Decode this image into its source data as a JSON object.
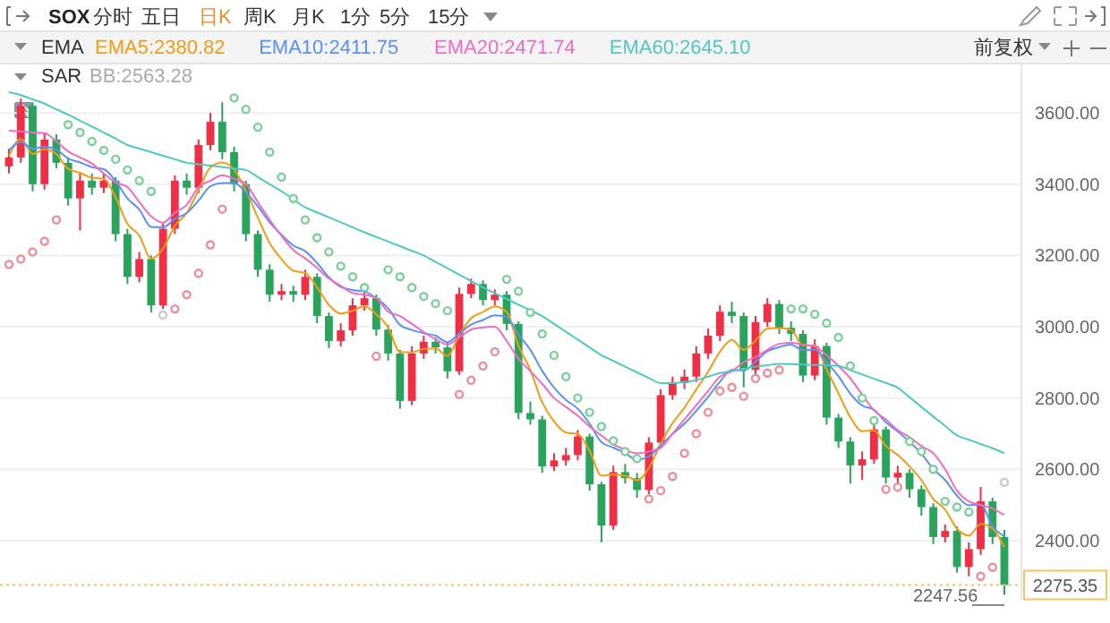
{
  "chart_data": {
    "type": "candlestick",
    "categories": [
      null,
      null,
      null,
      null,
      null,
      null,
      null,
      null,
      null,
      null,
      null,
      null,
      null,
      null,
      null,
      null,
      null,
      null,
      null,
      null,
      null,
      null,
      null,
      null,
      null,
      null,
      null,
      null,
      null,
      null,
      null,
      null,
      null,
      null,
      null,
      null,
      null,
      null,
      null,
      null,
      null,
      null,
      null,
      null,
      null,
      null,
      null,
      null,
      null,
      null,
      null,
      null,
      null,
      null,
      null,
      null,
      null,
      null,
      null,
      null,
      null,
      null,
      null,
      null,
      null,
      null,
      null,
      null,
      null,
      null,
      null,
      null,
      null,
      null,
      null,
      null,
      null,
      null,
      null,
      null,
      null,
      null,
      null,
      null,
      null
    ],
    "ohlc": [
      [
        3450,
        3500,
        3430,
        3475
      ],
      [
        3475,
        3640,
        3460,
        3620
      ],
      [
        3620,
        3630,
        3380,
        3400
      ],
      [
        3400,
        3545,
        3385,
        3525
      ],
      [
        3525,
        3540,
        3445,
        3460
      ],
      [
        3460,
        3475,
        3340,
        3360
      ],
      [
        3360,
        3430,
        3270,
        3410
      ],
      [
        3410,
        3430,
        3370,
        3390
      ],
      [
        3390,
        3430,
        3375,
        3410
      ],
      [
        3410,
        3420,
        3240,
        3260
      ],
      [
        3260,
        3275,
        3120,
        3140
      ],
      [
        3140,
        3210,
        3125,
        3190
      ],
      [
        3190,
        3200,
        3040,
        3060
      ],
      [
        3060,
        3290,
        3050,
        3275
      ],
      [
        3275,
        3425,
        3260,
        3410
      ],
      [
        3410,
        3430,
        3370,
        3390
      ],
      [
        3390,
        3525,
        3375,
        3510
      ],
      [
        3510,
        3600,
        3495,
        3575
      ],
      [
        3575,
        3630,
        3470,
        3490
      ],
      [
        3490,
        3505,
        3380,
        3400
      ],
      [
        3400,
        3410,
        3240,
        3260
      ],
      [
        3260,
        3270,
        3140,
        3160
      ],
      [
        3160,
        3175,
        3070,
        3090
      ],
      [
        3090,
        3120,
        3075,
        3100
      ],
      [
        3100,
        3115,
        3070,
        3090
      ],
      [
        3090,
        3160,
        3075,
        3140
      ],
      [
        3140,
        3150,
        3010,
        3030
      ],
      [
        3030,
        3040,
        2940,
        2960
      ],
      [
        2960,
        3010,
        2945,
        2990
      ],
      [
        2990,
        3080,
        2975,
        3060
      ],
      [
        3060,
        3100,
        3045,
        3080
      ],
      [
        3080,
        3090,
        2975,
        2992
      ],
      [
        2992,
        3005,
        2905,
        2925
      ],
      [
        2925,
        2935,
        2770,
        2792
      ],
      [
        2792,
        2945,
        2780,
        2925
      ],
      [
        2925,
        2975,
        2910,
        2958
      ],
      [
        2958,
        2970,
        2925,
        2942
      ],
      [
        2942,
        2955,
        2855,
        2875
      ],
      [
        2875,
        3110,
        2865,
        3092
      ],
      [
        3092,
        3135,
        3080,
        3120
      ],
      [
        3120,
        3130,
        3060,
        3075
      ],
      [
        3075,
        3105,
        3060,
        3090
      ],
      [
        3090,
        3100,
        2990,
        3008
      ],
      [
        3008,
        3015,
        2740,
        2758
      ],
      [
        2758,
        2790,
        2725,
        2740
      ],
      [
        2740,
        2750,
        2590,
        2608
      ],
      [
        2608,
        2645,
        2595,
        2625
      ],
      [
        2625,
        2660,
        2610,
        2640
      ],
      [
        2640,
        2710,
        2625,
        2692
      ],
      [
        2692,
        2700,
        2540,
        2558
      ],
      [
        2558,
        2565,
        2395,
        2442
      ],
      [
        2442,
        2610,
        2430,
        2592
      ],
      [
        2592,
        2615,
        2560,
        2575
      ],
      [
        2575,
        2590,
        2520,
        2542
      ],
      [
        2542,
        2690,
        2530,
        2675
      ],
      [
        2675,
        2825,
        2660,
        2808
      ],
      [
        2808,
        2860,
        2795,
        2842
      ],
      [
        2842,
        2880,
        2825,
        2860
      ],
      [
        2860,
        2945,
        2845,
        2925
      ],
      [
        2925,
        2995,
        2910,
        2975
      ],
      [
        2975,
        3060,
        2960,
        3042
      ],
      [
        3042,
        3070,
        3010,
        3030
      ],
      [
        3030,
        3040,
        2830,
        2879
      ],
      [
        2879,
        3030,
        2865,
        3013
      ],
      [
        3013,
        3080,
        3000,
        3064
      ],
      [
        3064,
        3075,
        2980,
        2997
      ],
      [
        2997,
        3015,
        2960,
        2980
      ],
      [
        2980,
        2990,
        2845,
        2863
      ],
      [
        2863,
        2965,
        2850,
        2946
      ],
      [
        2946,
        2955,
        2725,
        2745
      ],
      [
        2745,
        2755,
        2660,
        2678
      ],
      [
        2678,
        2690,
        2560,
        2611
      ],
      [
        2611,
        2650,
        2570,
        2628
      ],
      [
        2628,
        2730,
        2615,
        2712
      ],
      [
        2712,
        2720,
        2560,
        2577
      ],
      [
        2577,
        2610,
        2560,
        2590
      ],
      [
        2590,
        2600,
        2520,
        2544
      ],
      [
        2544,
        2555,
        2470,
        2494
      ],
      [
        2494,
        2505,
        2390,
        2410
      ],
      [
        2410,
        2445,
        2395,
        2427
      ],
      [
        2427,
        2440,
        2310,
        2326
      ],
      [
        2326,
        2395,
        2300,
        2376
      ],
      [
        2376,
        2550,
        2360,
        2510
      ],
      [
        2510,
        2520,
        2390,
        2410
      ],
      [
        2410,
        2430,
        2247.56,
        2275.35
      ]
    ],
    "series": [
      {
        "name": "EMA5:2380.82",
        "type": "line",
        "color": "#f39c12",
        "values": [
          3480,
          3527,
          3485,
          3498,
          3485,
          3443,
          3432,
          3418,
          3415,
          3363,
          3289,
          3256,
          3191,
          3219,
          3283,
          3319,
          3383,
          3447,
          3461,
          3441,
          3381,
          3307,
          3235,
          3190,
          3157,
          3151,
          3111,
          3061,
          3037,
          3045,
          3057,
          3035,
          2998,
          2929,
          2928,
          2938,
          2939,
          2918,
          2976,
          3024,
          3041,
          3057,
          3041,
          2947,
          2878,
          2788,
          2734,
          2703,
          2699,
          2652,
          2582,
          2585,
          2582,
          2569,
          2604,
          2672,
          2729,
          2773,
          2824,
          2874,
          2930,
          2963,
          2935,
          2961,
          2995,
          2996,
          2991,
          2948,
          2947,
          2880,
          2813,
          2746,
          2707,
          2709,
          2665,
          2640,
          2608,
          2570,
          2517,
          2487,
          2433,
          2414,
          2446,
          2434,
          2380.82
        ]
      },
      {
        "name": "EMA10:2411.75",
        "type": "line",
        "color": "#5b8ff9",
        "values": [
          3495,
          3518,
          3500,
          3505,
          3497,
          3472,
          3461,
          3448,
          3442,
          3409,
          3360,
          3329,
          3280,
          3279,
          3303,
          3319,
          3354,
          3394,
          3403,
          3403,
          3377,
          3338,
          3293,
          3258,
          3228,
          3212,
          3179,
          3139,
          3112,
          3103,
          3099,
          3080,
          3052,
          3005,
          2991,
          2982,
          2975,
          2957,
          2981,
          3006,
          3019,
          3032,
          3027,
          2978,
          2935,
          2876,
          2829,
          2795,
          2770,
          2728,
          2676,
          2661,
          2645,
          2627,
          2636,
          2667,
          2699,
          2728,
          2764,
          2803,
          2846,
          2879,
          2877,
          2902,
          2931,
          2943,
          2950,
          2934,
          2936,
          2901,
          2861,
          2812,
          2779,
          2767,
          2732,
          2706,
          2677,
          2644,
          2601,
          2570,
          2526,
          2499,
          2501,
          2440,
          2411.75
        ]
      },
      {
        "name": "EMA20:2471.74",
        "type": "line",
        "color": "#f26bc1",
        "values": [
          3550,
          3548,
          3545,
          3543,
          3520,
          3492,
          3475,
          3458,
          3430,
          3405,
          3392,
          3350,
          3310,
          3292,
          3320,
          3342,
          3392,
          3410,
          3425,
          3415,
          3400,
          3350,
          3300,
          3255,
          3215,
          3192,
          3165,
          3135,
          3115,
          3095,
          3090,
          3080,
          3042,
          3030,
          3008,
          2985,
          2965,
          2950,
          2970,
          2992,
          2998,
          3000,
          2960,
          2910,
          2875,
          2840,
          2800,
          2775,
          2750,
          2720,
          2695,
          2670,
          2655,
          2645,
          2650,
          2660,
          2700,
          2740,
          2780,
          2820,
          2860,
          2875,
          2900,
          2915,
          2935,
          2952,
          2955,
          2950,
          2945,
          2920,
          2890,
          2855,
          2810,
          2765,
          2740,
          2710,
          2690,
          2665,
          2645,
          2600,
          2540,
          2510,
          2500,
          2490,
          2471.74
        ]
      },
      {
        "name": "EMA60:2645.10",
        "type": "line",
        "color": "#4fc9c0",
        "values": [
          3658,
          3650,
          3638,
          3626,
          3610,
          3595,
          3578,
          3562,
          3545,
          3528,
          3510,
          3500,
          3490,
          3480,
          3470,
          3460,
          3456,
          3452,
          3448,
          3444,
          3440,
          3420,
          3400,
          3380,
          3358,
          3335,
          3321,
          3307,
          3293,
          3279,
          3265,
          3252,
          3239,
          3226,
          3213,
          3200,
          3182,
          3164,
          3146,
          3128,
          3110,
          3094,
          3078,
          3062,
          3046,
          3030,
          3008,
          2986,
          2964,
          2942,
          2920,
          2904,
          2888,
          2872,
          2856,
          2842,
          2842,
          2845,
          2850,
          2860,
          2870,
          2876,
          2882,
          2888,
          2892,
          2896,
          2895,
          2894,
          2893,
          2892,
          2890,
          2878,
          2866,
          2854,
          2842,
          2829,
          2802,
          2775,
          2748,
          2722,
          2695,
          2683,
          2671,
          2659,
          2645.1
        ]
      },
      {
        "type": "scatter",
        "marker": "circle",
        "values": [
          3175,
          3190,
          3210,
          3240,
          3300,
          3567,
          3545,
          3520,
          3495,
          3470,
          3440,
          3410,
          3380,
          3033,
          3050,
          3090,
          3150,
          3230,
          3330,
          3642,
          3610,
          3560,
          3490,
          3420,
          3360,
          3300,
          3250,
          3210,
          3170,
          3140,
          3110,
          2917,
          3160,
          3140,
          3110,
          3085,
          3065,
          3045,
          2810,
          2850,
          2890,
          2930,
          3133,
          3100,
          3040,
          2980,
          2920,
          2860,
          2800,
          2760,
          2720,
          2680,
          2650,
          2630,
          2517,
          2540,
          2580,
          2645,
          2700,
          2760,
          2820,
          2830,
          2805,
          2855,
          2870,
          2879,
          3050,
          3050,
          3035,
          3010,
          2970,
          2890,
          2800,
          2737,
          2544,
          2550,
          2678,
          2650,
          2600,
          2510,
          2494,
          2480,
          2300,
          2325,
          2563.28
        ],
        "colors": [
          "#f08c9a",
          "#f08c9a",
          "#f08c9a",
          "#f08c9a",
          "#f08c9a",
          "#7ccf99",
          "#7ccf99",
          "#7ccf99",
          "#7ccf99",
          "#7ccf99",
          "#7ccf99",
          "#7ccf99",
          "#7ccf99",
          "#c8c8c8",
          "#f08c9a",
          "#f08c9a",
          "#f08c9a",
          "#f08c9a",
          "#f08c9a",
          "#7ccf99",
          "#7ccf99",
          "#7ccf99",
          "#7ccf99",
          "#7ccf99",
          "#7ccf99",
          "#7ccf99",
          "#7ccf99",
          "#7ccf99",
          "#7ccf99",
          "#7ccf99",
          "#7ccf99",
          "#f08c9a",
          "#7ccf99",
          "#7ccf99",
          "#7ccf99",
          "#7ccf99",
          "#7ccf99",
          "#7ccf99",
          "#f08c9a",
          "#f08c9a",
          "#f08c9a",
          "#f08c9a",
          "#7ccf99",
          "#7ccf99",
          "#7ccf99",
          "#7ccf99",
          "#7ccf99",
          "#7ccf99",
          "#7ccf99",
          "#7ccf99",
          "#7ccf99",
          "#7ccf99",
          "#7ccf99",
          "#7ccf99",
          "#f08c9a",
          "#f08c9a",
          "#f08c9a",
          "#f08c9a",
          "#f08c9a",
          "#f08c9a",
          "#f08c9a",
          "#f08c9a",
          "#f08c9a",
          "#f08c9a",
          "#f08c9a",
          "#f08c9a",
          "#7ccf99",
          "#7ccf99",
          "#7ccf99",
          "#7ccf99",
          "#7ccf99",
          "#7ccf99",
          "#7ccf99",
          "#7ccf99",
          "#f08c9a",
          "#f08c9a",
          "#7ccf99",
          "#7ccf99",
          "#7ccf99",
          "#7ccf99",
          "#7ccf99",
          "#7ccf99",
          "#f08c9a",
          "#f08c9a",
          "#c8c8c8"
        ]
      }
    ],
    "ylim": [
      2234,
      3736
    ],
    "yticks": [
      {
        "value": 2400,
        "label": "2400.00"
      },
      {
        "value": 2600,
        "label": "2600.00"
      },
      {
        "value": 2800,
        "label": "2800.00"
      },
      {
        "value": 3000,
        "label": "3000.00"
      },
      {
        "value": 3200,
        "label": "3200.00"
      },
      {
        "value": 3400,
        "label": "3400.00"
      },
      {
        "value": 3600,
        "label": "3600.00"
      }
    ],
    "tick_labels": "y",
    "grid": "y",
    "legend": "top",
    "ref_lines": [
      {
        "axis": "y",
        "value": 2275.35,
        "label": "2275.35",
        "color": "#f7c35f",
        "line_style": "dotted"
      }
    ],
    "annotations": [
      "SOX",
      "分时",
      "五日",
      "日K",
      "周K",
      "月K",
      "1分",
      "5分",
      "15分",
      "EMA",
      "前复权",
      "SAR",
      "BB:2563.28",
      "2247.56"
    ]
  }
}
